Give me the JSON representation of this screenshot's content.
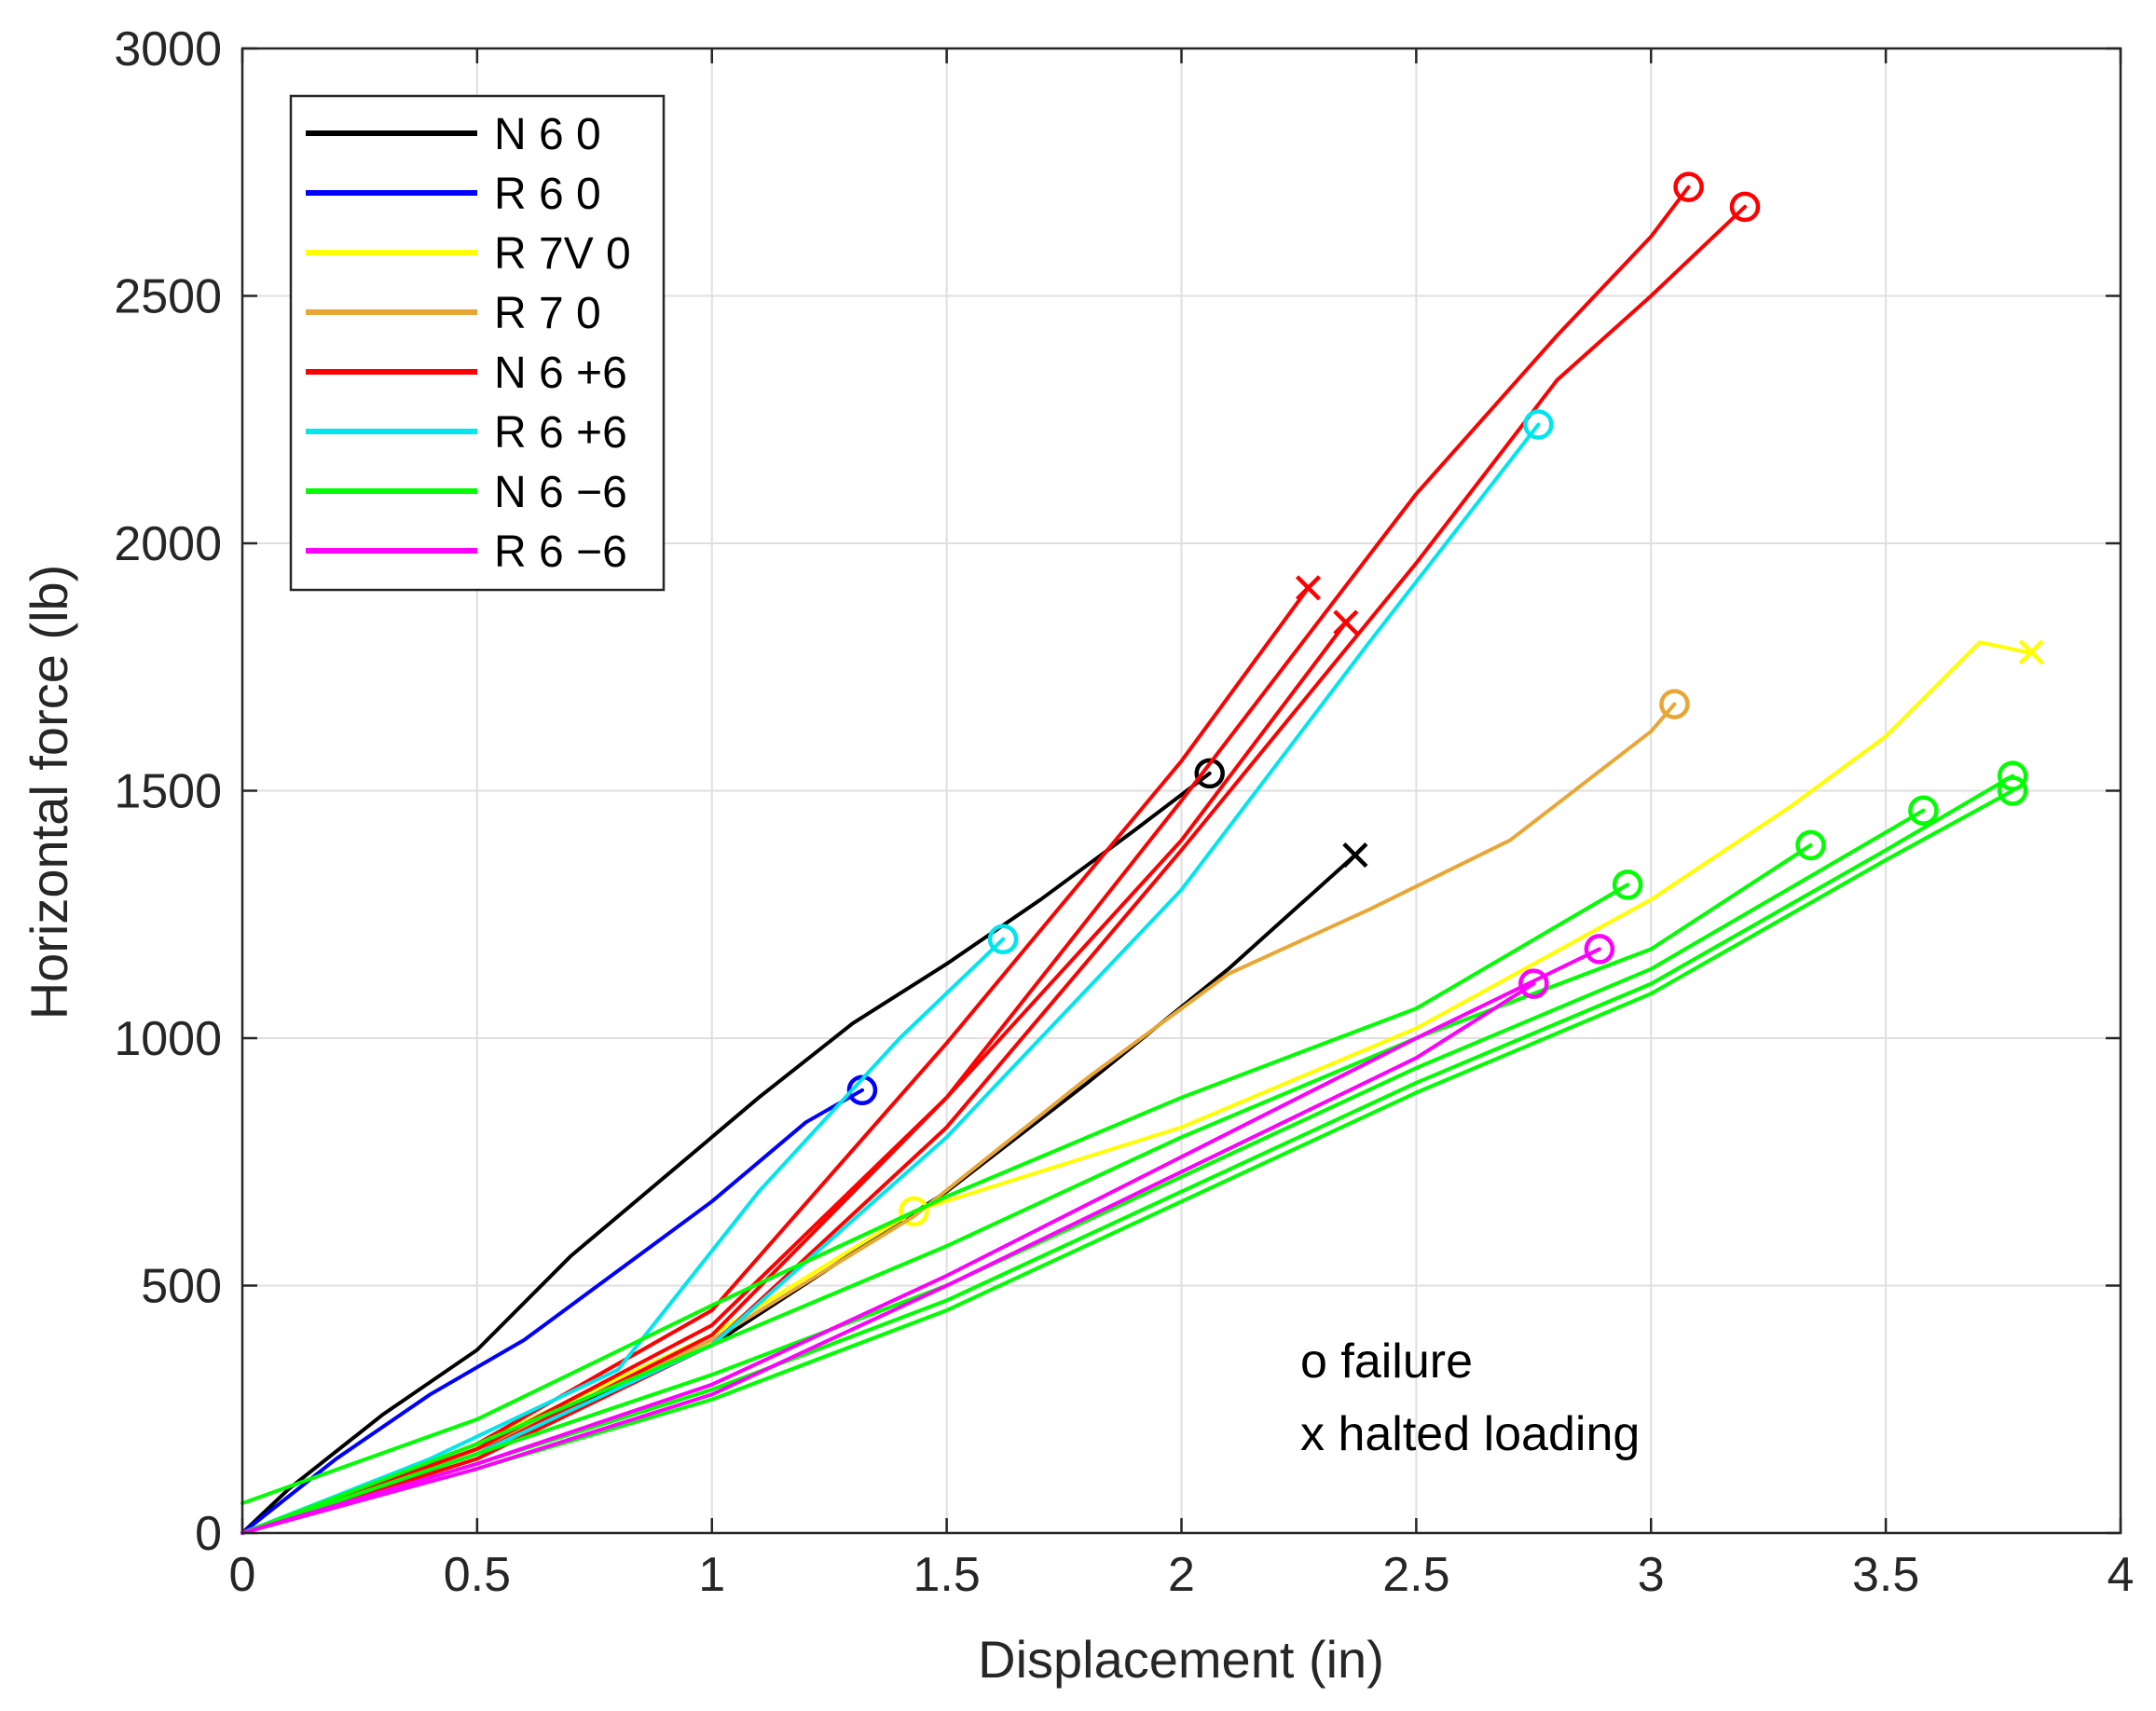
{
  "chart_data": {
    "type": "line",
    "title": "",
    "xlabel": "Displacement (in)",
    "ylabel": "Horizontal force (lb)",
    "xlim": [
      0,
      4
    ],
    "ylim": [
      0,
      3000
    ],
    "xticks": [
      0,
      0.5,
      1,
      1.5,
      2,
      2.5,
      3,
      3.5,
      4
    ],
    "xtick_labels": [
      "0",
      "0.5",
      "1",
      "1.5",
      "2",
      "2.5",
      "3",
      "3.5",
      "4"
    ],
    "yticks": [
      0,
      500,
      1000,
      1500,
      2000,
      2500,
      3000
    ],
    "ytick_labels": [
      "0",
      "500",
      "1000",
      "1500",
      "2000",
      "2500",
      "3000"
    ],
    "grid": true,
    "legend_position": "top-left",
    "annotations": [
      "o failure",
      "x halted loading"
    ],
    "series": [
      {
        "name": "N 6 0",
        "color": "#000000",
        "curves": [
          [
            [
              0,
              0
            ],
            [
              0.1,
              90
            ],
            [
              0.3,
              240
            ],
            [
              0.5,
              370
            ],
            [
              0.7,
              560
            ],
            [
              0.9,
              720
            ],
            [
              1.1,
              880
            ],
            [
              1.3,
              1030
            ],
            [
              1.5,
              1150
            ],
            [
              1.7,
              1280
            ],
            [
              1.9,
              1420
            ],
            [
              2.06,
              1535
            ]
          ],
          [
            [
              0,
              0
            ],
            [
              0.5,
              170
            ],
            [
              1,
              380
            ],
            [
              1.5,
              690
            ],
            [
              1.8,
              910
            ],
            [
              2.1,
              1140
            ],
            [
              2.37,
              1370
            ]
          ]
        ],
        "failure_points": [
          [
            2.06,
            1535
          ]
        ],
        "halted_points": [
          [
            2.37,
            1370
          ]
        ]
      },
      {
        "name": "R 6 0",
        "color": "#0000ff",
        "curves": [
          [
            [
              0,
              0
            ],
            [
              0.2,
              150
            ],
            [
              0.4,
              280
            ],
            [
              0.6,
              390
            ],
            [
              0.8,
              530
            ],
            [
              1,
              670
            ],
            [
              1.1,
              750
            ],
            [
              1.2,
              830
            ],
            [
              1.32,
              895
            ]
          ]
        ],
        "failure_points": [
          [
            1.32,
            895
          ]
        ],
        "halted_points": []
      },
      {
        "name": "R 7V 0",
        "color": "#ffff00",
        "curves": [
          [
            [
              0,
              0
            ],
            [
              0.5,
              180
            ],
            [
              1,
              400
            ],
            [
              1.43,
              650
            ],
            [
              2,
              820
            ],
            [
              2.5,
              1020
            ],
            [
              3,
              1280
            ],
            [
              3.3,
              1470
            ],
            [
              3.5,
              1610
            ],
            [
              3.7,
              1800
            ],
            [
              3.8,
              1780
            ]
          ]
        ],
        "failure_points": [
          [
            1.43,
            650
          ]
        ],
        "halted_points": [
          [
            3.81,
            1780
          ]
        ]
      },
      {
        "name": "R 7 0",
        "color": "#e8a735",
        "curves": [
          [
            [
              0,
              0
            ],
            [
              0.5,
              170
            ],
            [
              1,
              390
            ],
            [
              1.43,
              640
            ],
            [
              1.8,
              920
            ],
            [
              2.1,
              1130
            ],
            [
              2.4,
              1260
            ],
            [
              2.7,
              1400
            ],
            [
              3,
              1620
            ],
            [
              3.05,
              1675
            ]
          ]
        ],
        "failure_points": [
          [
            3.05,
            1675
          ]
        ],
        "halted_points": []
      },
      {
        "name": "N 6 +6",
        "color": "#ff0000",
        "curves": [
          [
            [
              0,
              0
            ],
            [
              0.5,
              170
            ],
            [
              1,
              420
            ],
            [
              1.5,
              880
            ],
            [
              2,
              1480
            ],
            [
              2.5,
              2100
            ],
            [
              2.8,
              2420
            ],
            [
              3,
              2620
            ],
            [
              3.08,
              2720
            ]
          ],
          [
            [
              0,
              0
            ],
            [
              0.5,
              150
            ],
            [
              1,
              380
            ],
            [
              1.5,
              820
            ],
            [
              2,
              1380
            ],
            [
              2.5,
              1960
            ],
            [
              2.8,
              2330
            ],
            [
              3,
              2500
            ],
            [
              3.2,
              2680
            ]
          ],
          [
            [
              0,
              0
            ],
            [
              0.5,
              180
            ],
            [
              1,
              450
            ],
            [
              1.5,
              990
            ],
            [
              2,
              1560
            ],
            [
              2.27,
              1910
            ]
          ],
          [
            [
              0,
              0
            ],
            [
              0.5,
              160
            ],
            [
              1,
              400
            ],
            [
              1.5,
              880
            ],
            [
              2,
              1400
            ],
            [
              2.35,
              1840
            ]
          ]
        ],
        "failure_points": [
          [
            3.08,
            2720
          ],
          [
            3.2,
            2680
          ]
        ],
        "halted_points": [
          [
            2.27,
            1910
          ],
          [
            2.35,
            1840
          ]
        ]
      },
      {
        "name": "R 6 +6",
        "color": "#00e5ee",
        "curves": [
          [
            [
              0,
              0
            ],
            [
              0.4,
              150
            ],
            [
              0.8,
              330
            ],
            [
              1.1,
              690
            ],
            [
              1.4,
              1000
            ],
            [
              1.62,
              1200
            ]
          ],
          [
            [
              0,
              0
            ],
            [
              0.5,
              160
            ],
            [
              1,
              380
            ],
            [
              1.5,
              800
            ],
            [
              2,
              1300
            ],
            [
              2.4,
              1800
            ],
            [
              2.76,
              2240
            ]
          ]
        ],
        "failure_points": [
          [
            1.62,
            1200
          ],
          [
            2.76,
            2240
          ]
        ],
        "halted_points": []
      },
      {
        "name": "N 6 −6",
        "color": "#00ff00",
        "curves": [
          [
            [
              0,
              60
            ],
            [
              0.5,
              230
            ],
            [
              1,
              460
            ],
            [
              1.5,
              680
            ],
            [
              2,
              880
            ],
            [
              2.5,
              1060
            ],
            [
              2.95,
              1310
            ]
          ],
          [
            [
              0,
              0
            ],
            [
              0.5,
              180
            ],
            [
              1,
              380
            ],
            [
              1.5,
              580
            ],
            [
              2,
              800
            ],
            [
              2.5,
              1000
            ],
            [
              3,
              1180
            ],
            [
              3.34,
              1390
            ]
          ],
          [
            [
              0,
              0
            ],
            [
              0.5,
              160
            ],
            [
              1,
              320
            ],
            [
              1.5,
              500
            ],
            [
              2,
              720
            ],
            [
              2.5,
              940
            ],
            [
              3,
              1140
            ],
            [
              3.58,
              1460
            ]
          ],
          [
            [
              0,
              0
            ],
            [
              0.5,
              140
            ],
            [
              1,
              290
            ],
            [
              1.5,
              470
            ],
            [
              2,
              690
            ],
            [
              2.5,
              910
            ],
            [
              3,
              1110
            ],
            [
              3.5,
              1380
            ],
            [
              3.77,
              1530
            ]
          ],
          [
            [
              0,
              0
            ],
            [
              0.5,
              130
            ],
            [
              1,
              270
            ],
            [
              1.5,
              450
            ],
            [
              2,
              670
            ],
            [
              2.5,
              890
            ],
            [
              3,
              1090
            ],
            [
              3.5,
              1360
            ],
            [
              3.77,
              1500
            ]
          ]
        ],
        "failure_points": [
          [
            2.95,
            1310
          ],
          [
            3.34,
            1390
          ],
          [
            3.58,
            1460
          ],
          [
            3.77,
            1530
          ],
          [
            3.77,
            1500
          ]
        ],
        "halted_points": []
      },
      {
        "name": "R 6 −6",
        "color": "#ff00ff",
        "curves": [
          [
            [
              0,
              0
            ],
            [
              0.5,
              130
            ],
            [
              1,
              280
            ],
            [
              1.5,
              500
            ],
            [
              2,
              730
            ],
            [
              2.5,
              960
            ],
            [
              2.75,
              1110
            ]
          ],
          [
            [
              0,
              0
            ],
            [
              0.5,
              140
            ],
            [
              1,
              300
            ],
            [
              1.5,
              520
            ],
            [
              2,
              760
            ],
            [
              2.5,
              1000
            ],
            [
              2.89,
              1180
            ]
          ]
        ],
        "failure_points": [
          [
            2.75,
            1110
          ],
          [
            2.89,
            1180
          ]
        ],
        "halted_points": []
      }
    ]
  }
}
